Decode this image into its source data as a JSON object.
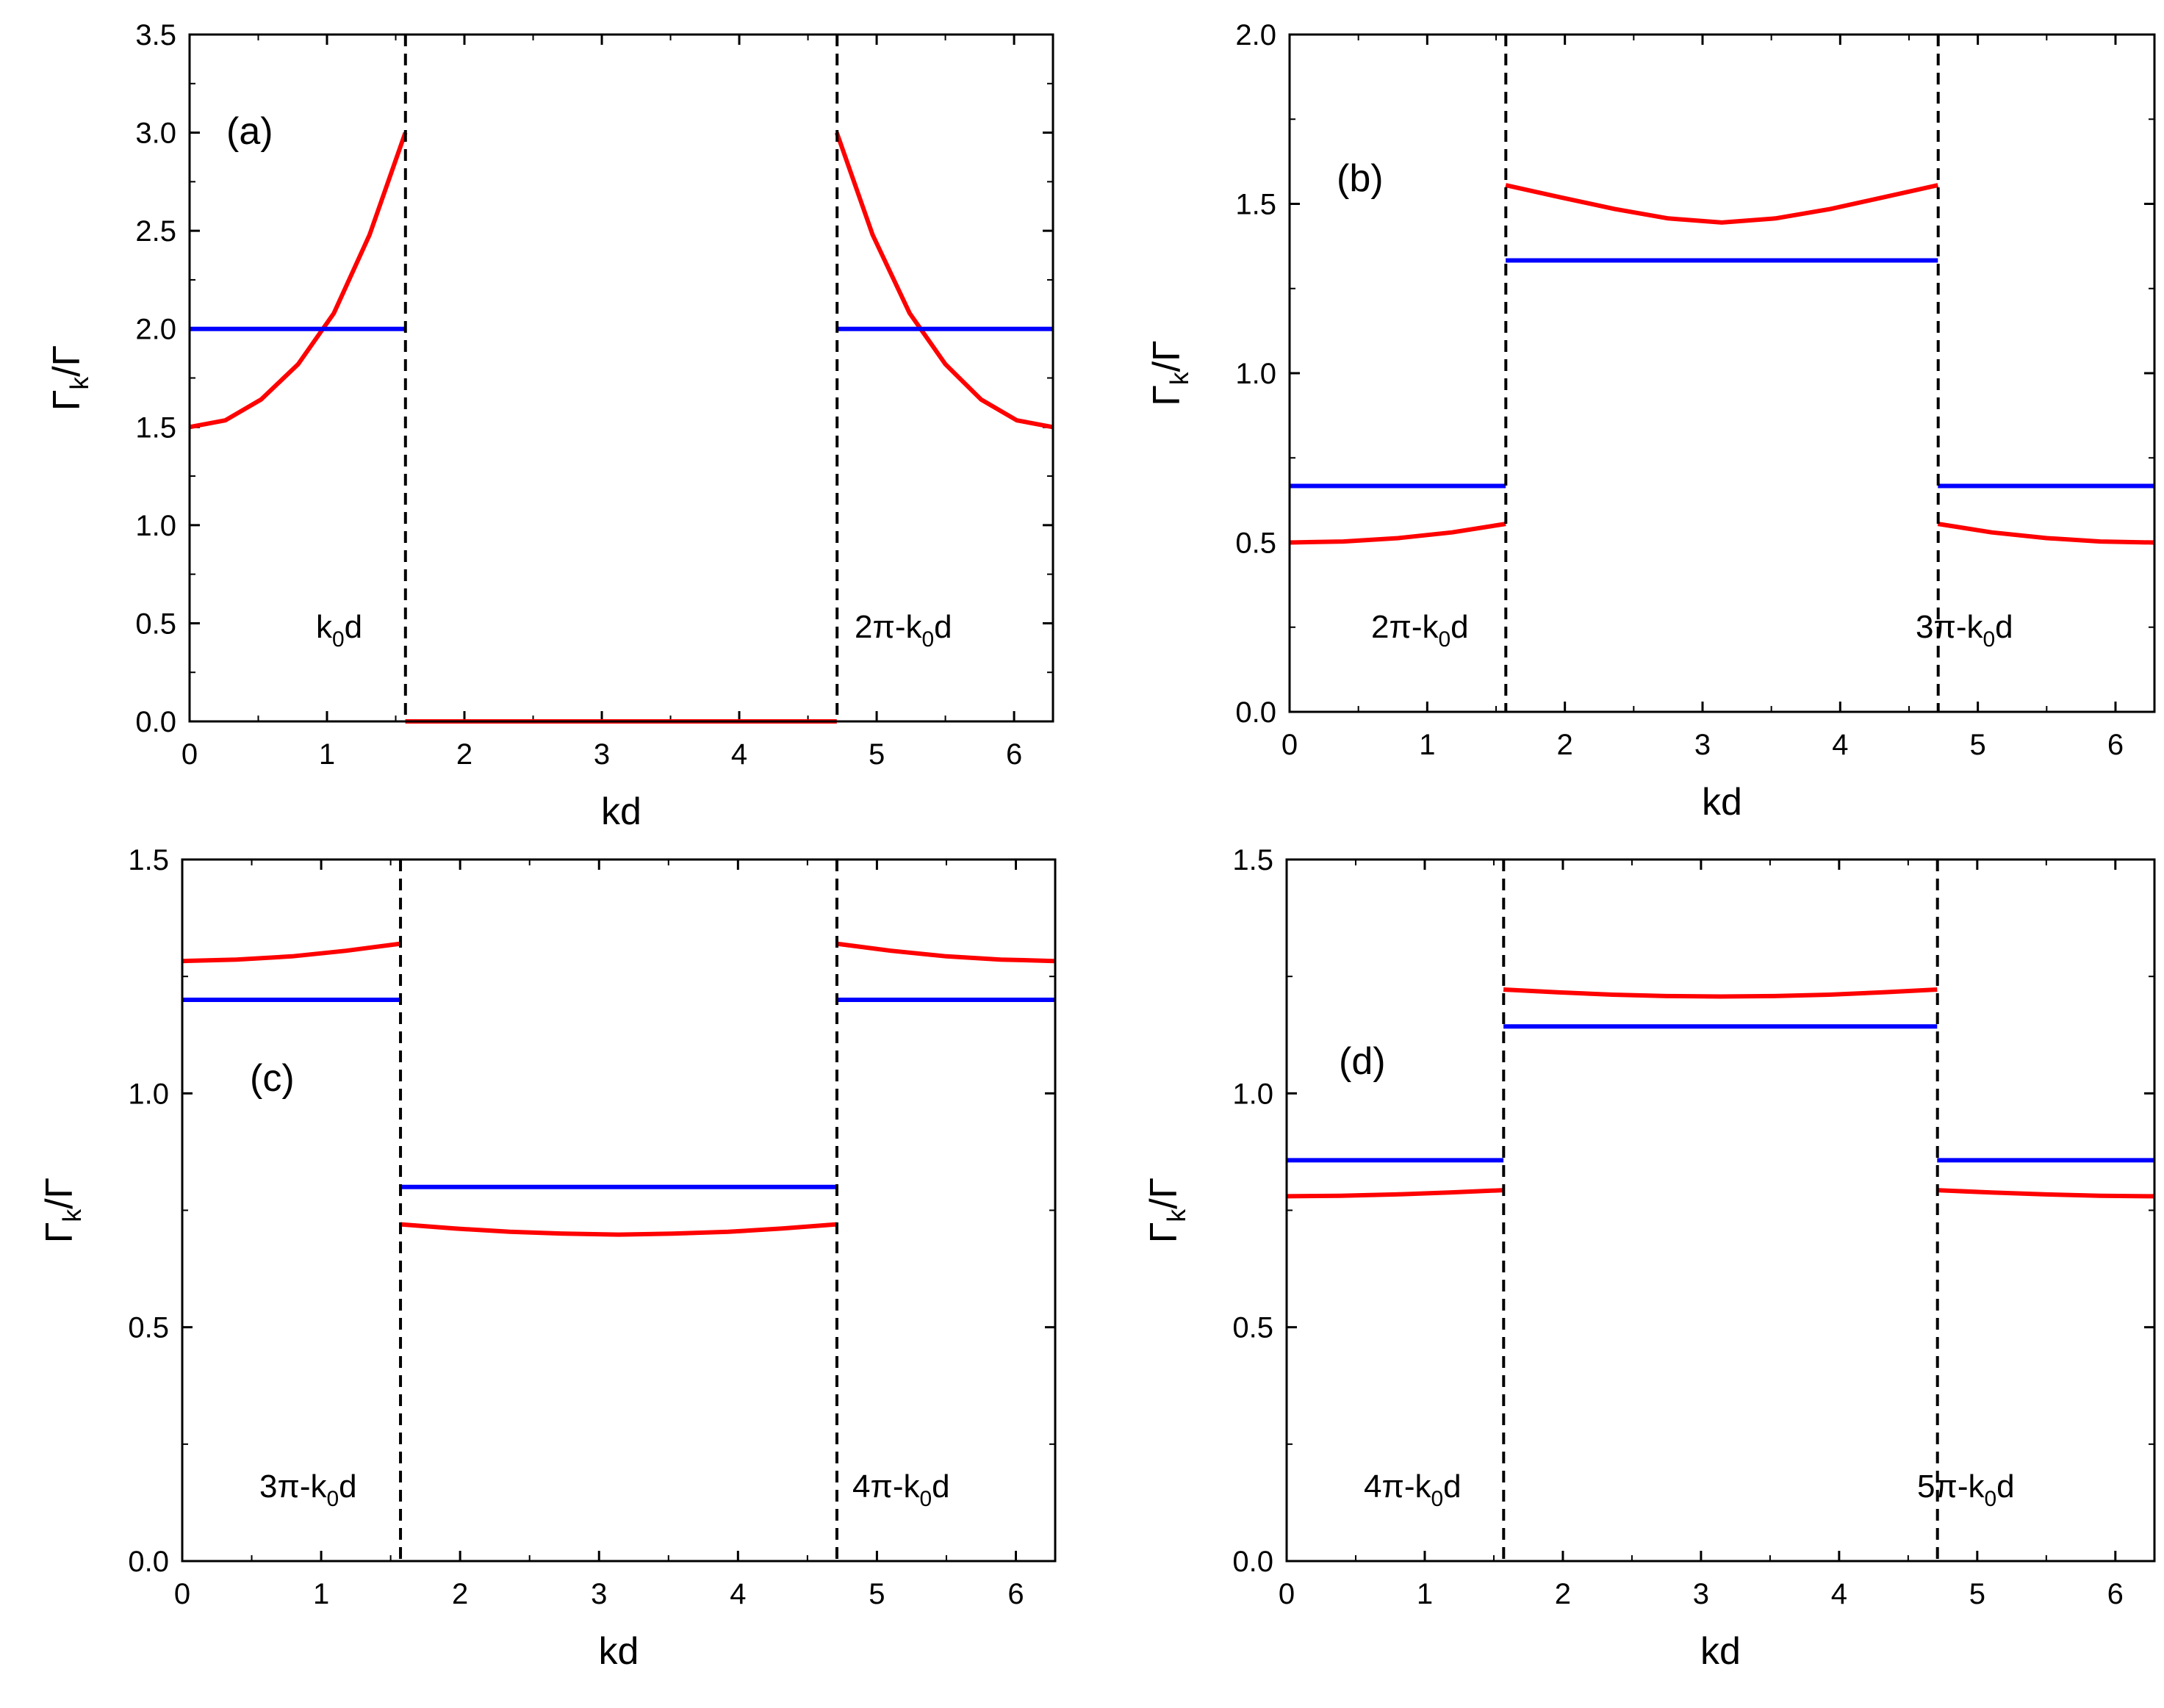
{
  "colors": {
    "series_red": "#ff0000",
    "series_blue": "#0000ff",
    "axis": "#000000"
  },
  "chart_data": [
    {
      "type": "line",
      "panel_label": "(a)",
      "xlabel": "kd",
      "ylabel": "Γk/Γ",
      "xlim": [
        0,
        6.283
      ],
      "ylim": [
        0,
        3.5
      ],
      "xticks": [
        "0",
        "1",
        "2",
        "3",
        "4",
        "5",
        "6"
      ],
      "yticks": [
        "0.0",
        "0.5",
        "1.0",
        "1.5",
        "2.0",
        "2.5",
        "3.0",
        "3.5"
      ],
      "ytick_values": [
        0,
        0.5,
        1.0,
        1.5,
        2.0,
        2.5,
        3.0,
        3.5
      ],
      "vlines": [
        1.571,
        4.712
      ],
      "annotations": [
        {
          "text": "k0d",
          "base": "k",
          "sub": "0",
          "tail": "d",
          "side": "left-of-first-line"
        },
        {
          "text": "2π-k0d",
          "base": "2π-k",
          "sub": "0",
          "tail": "d",
          "side": "right-of-second-line"
        }
      ],
      "series": [
        {
          "name": "red",
          "color": "#ff0000",
          "segments": [
            [
              [
                0.0,
                1.5
              ],
              [
                0.26,
                1.534
              ],
              [
                0.52,
                1.64
              ],
              [
                0.79,
                1.82
              ],
              [
                1.05,
                2.08
              ],
              [
                1.31,
                2.48
              ],
              [
                1.57,
                3.0
              ]
            ],
            [
              [
                1.57,
                0.0
              ],
              [
                4.71,
                0.0
              ]
            ],
            [
              [
                4.71,
                3.0
              ],
              [
                4.97,
                2.48
              ],
              [
                5.24,
                2.08
              ],
              [
                5.5,
                1.82
              ],
              [
                5.76,
                1.64
              ],
              [
                6.02,
                1.534
              ],
              [
                6.28,
                1.5
              ]
            ]
          ]
        },
        {
          "name": "blue",
          "color": "#0000ff",
          "segments": [
            [
              [
                0.0,
                2.0
              ],
              [
                1.57,
                2.0
              ]
            ],
            [
              [
                4.71,
                2.0
              ],
              [
                6.28,
                2.0
              ]
            ]
          ]
        }
      ]
    },
    {
      "type": "line",
      "panel_label": "(b)",
      "xlabel": "kd",
      "ylabel": "Γk/Γ",
      "xlim": [
        0,
        6.283
      ],
      "ylim": [
        0,
        2.0
      ],
      "xticks": [
        "0",
        "1",
        "2",
        "3",
        "4",
        "5",
        "6"
      ],
      "yticks": [
        "0.0",
        "0.5",
        "1.0",
        "1.5",
        "2.0"
      ],
      "ytick_values": [
        0,
        0.5,
        1.0,
        1.5,
        2.0
      ],
      "vlines": [
        1.571,
        4.712
      ],
      "annotations": [
        {
          "text": "2π-k0d",
          "base": "2π-k",
          "sub": "0",
          "tail": "d",
          "side": "left-of-first-line"
        },
        {
          "text": "3π-k0d",
          "base": "3π-k",
          "sub": "0",
          "tail": "d",
          "side": "right-of-second-line"
        }
      ],
      "series": [
        {
          "name": "red",
          "color": "#ff0000",
          "segments": [
            [
              [
                0.0,
                0.5
              ],
              [
                0.39,
                0.503
              ],
              [
                0.79,
                0.513
              ],
              [
                1.18,
                0.53
              ],
              [
                1.57,
                0.555
              ]
            ],
            [
              [
                1.57,
                1.555
              ],
              [
                1.96,
                1.52
              ],
              [
                2.36,
                1.485
              ],
              [
                2.75,
                1.457
              ],
              [
                3.14,
                1.445
              ],
              [
                3.53,
                1.457
              ],
              [
                3.93,
                1.485
              ],
              [
                4.32,
                1.52
              ],
              [
                4.71,
                1.555
              ]
            ],
            [
              [
                4.71,
                0.555
              ],
              [
                5.1,
                0.53
              ],
              [
                5.5,
                0.513
              ],
              [
                5.89,
                0.503
              ],
              [
                6.28,
                0.5
              ]
            ]
          ]
        },
        {
          "name": "blue",
          "color": "#0000ff",
          "segments": [
            [
              [
                0.0,
                0.667
              ],
              [
                1.57,
                0.667
              ]
            ],
            [
              [
                1.57,
                1.333
              ],
              [
                4.71,
                1.333
              ]
            ],
            [
              [
                4.71,
                0.667
              ],
              [
                6.28,
                0.667
              ]
            ]
          ]
        }
      ]
    },
    {
      "type": "line",
      "panel_label": "(c)",
      "xlabel": "kd",
      "ylabel": "Γk/Γ",
      "xlim": [
        0,
        6.283
      ],
      "ylim": [
        0,
        1.5
      ],
      "xticks": [
        "0",
        "1",
        "2",
        "3",
        "4",
        "5",
        "6"
      ],
      "yticks": [
        "0.0",
        "0.5",
        "1.0",
        "1.5"
      ],
      "ytick_values": [
        0,
        0.5,
        1.0,
        1.5
      ],
      "vlines": [
        1.571,
        4.712
      ],
      "annotations": [
        {
          "text": "3π-k0d",
          "base": "3π-k",
          "sub": "0",
          "tail": "d",
          "side": "left-of-first-line"
        },
        {
          "text": "4π-k0d",
          "base": "4π-k",
          "sub": "0",
          "tail": "d",
          "side": "right-of-second-line"
        }
      ],
      "series": [
        {
          "name": "red",
          "color": "#ff0000",
          "segments": [
            [
              [
                0.0,
                1.283
              ],
              [
                0.39,
                1.286
              ],
              [
                0.79,
                1.293
              ],
              [
                1.18,
                1.305
              ],
              [
                1.57,
                1.32
              ]
            ],
            [
              [
                1.57,
                0.72
              ],
              [
                1.96,
                0.711
              ],
              [
                2.36,
                0.704
              ],
              [
                2.75,
                0.7
              ],
              [
                3.14,
                0.698
              ],
              [
                3.53,
                0.7
              ],
              [
                3.93,
                0.704
              ],
              [
                4.32,
                0.711
              ],
              [
                4.71,
                0.72
              ]
            ],
            [
              [
                4.71,
                1.32
              ],
              [
                5.1,
                1.305
              ],
              [
                5.5,
                1.293
              ],
              [
                5.89,
                1.286
              ],
              [
                6.28,
                1.283
              ]
            ]
          ]
        },
        {
          "name": "blue",
          "color": "#0000ff",
          "segments": [
            [
              [
                0.0,
                1.2
              ],
              [
                1.57,
                1.2
              ]
            ],
            [
              [
                1.57,
                0.8
              ],
              [
                4.71,
                0.8
              ]
            ],
            [
              [
                4.71,
                1.2
              ],
              [
                6.28,
                1.2
              ]
            ]
          ]
        }
      ]
    },
    {
      "type": "line",
      "panel_label": "(d)",
      "xlabel": "kd",
      "ylabel": "Γk/Γ",
      "xlim": [
        0,
        6.283
      ],
      "ylim": [
        0,
        1.5
      ],
      "xticks": [
        "0",
        "1",
        "2",
        "3",
        "4",
        "5",
        "6"
      ],
      "yticks": [
        "0.0",
        "0.5",
        "1.0",
        "1.5"
      ],
      "ytick_values": [
        0,
        0.5,
        1.0,
        1.5
      ],
      "vlines": [
        1.571,
        4.712
      ],
      "annotations": [
        {
          "text": "4π-k0d",
          "base": "4π-k",
          "sub": "0",
          "tail": "d",
          "side": "left-of-first-line"
        },
        {
          "text": "5π-k0d",
          "base": "5π-k",
          "sub": "0",
          "tail": "d",
          "side": "right-of-second-line"
        }
      ],
      "series": [
        {
          "name": "red",
          "color": "#ff0000",
          "segments": [
            [
              [
                0.0,
                0.78
              ],
              [
                0.39,
                0.781
              ],
              [
                0.79,
                0.784
              ],
              [
                1.18,
                0.788
              ],
              [
                1.57,
                0.793
              ]
            ],
            [
              [
                1.57,
                1.222
              ],
              [
                1.96,
                1.216
              ],
              [
                2.36,
                1.211
              ],
              [
                2.75,
                1.208
              ],
              [
                3.14,
                1.207
              ],
              [
                3.53,
                1.208
              ],
              [
                3.93,
                1.211
              ],
              [
                4.32,
                1.216
              ],
              [
                4.71,
                1.222
              ]
            ],
            [
              [
                4.71,
                0.793
              ],
              [
                5.1,
                0.788
              ],
              [
                5.5,
                0.784
              ],
              [
                5.89,
                0.781
              ],
              [
                6.28,
                0.78
              ]
            ]
          ]
        },
        {
          "name": "blue",
          "color": "#0000ff",
          "segments": [
            [
              [
                0.0,
                0.857
              ],
              [
                1.57,
                0.857
              ]
            ],
            [
              [
                1.57,
                1.143
              ],
              [
                4.71,
                1.143
              ]
            ],
            [
              [
                4.71,
                0.857
              ],
              [
                6.28,
                0.857
              ]
            ]
          ]
        }
      ]
    }
  ]
}
